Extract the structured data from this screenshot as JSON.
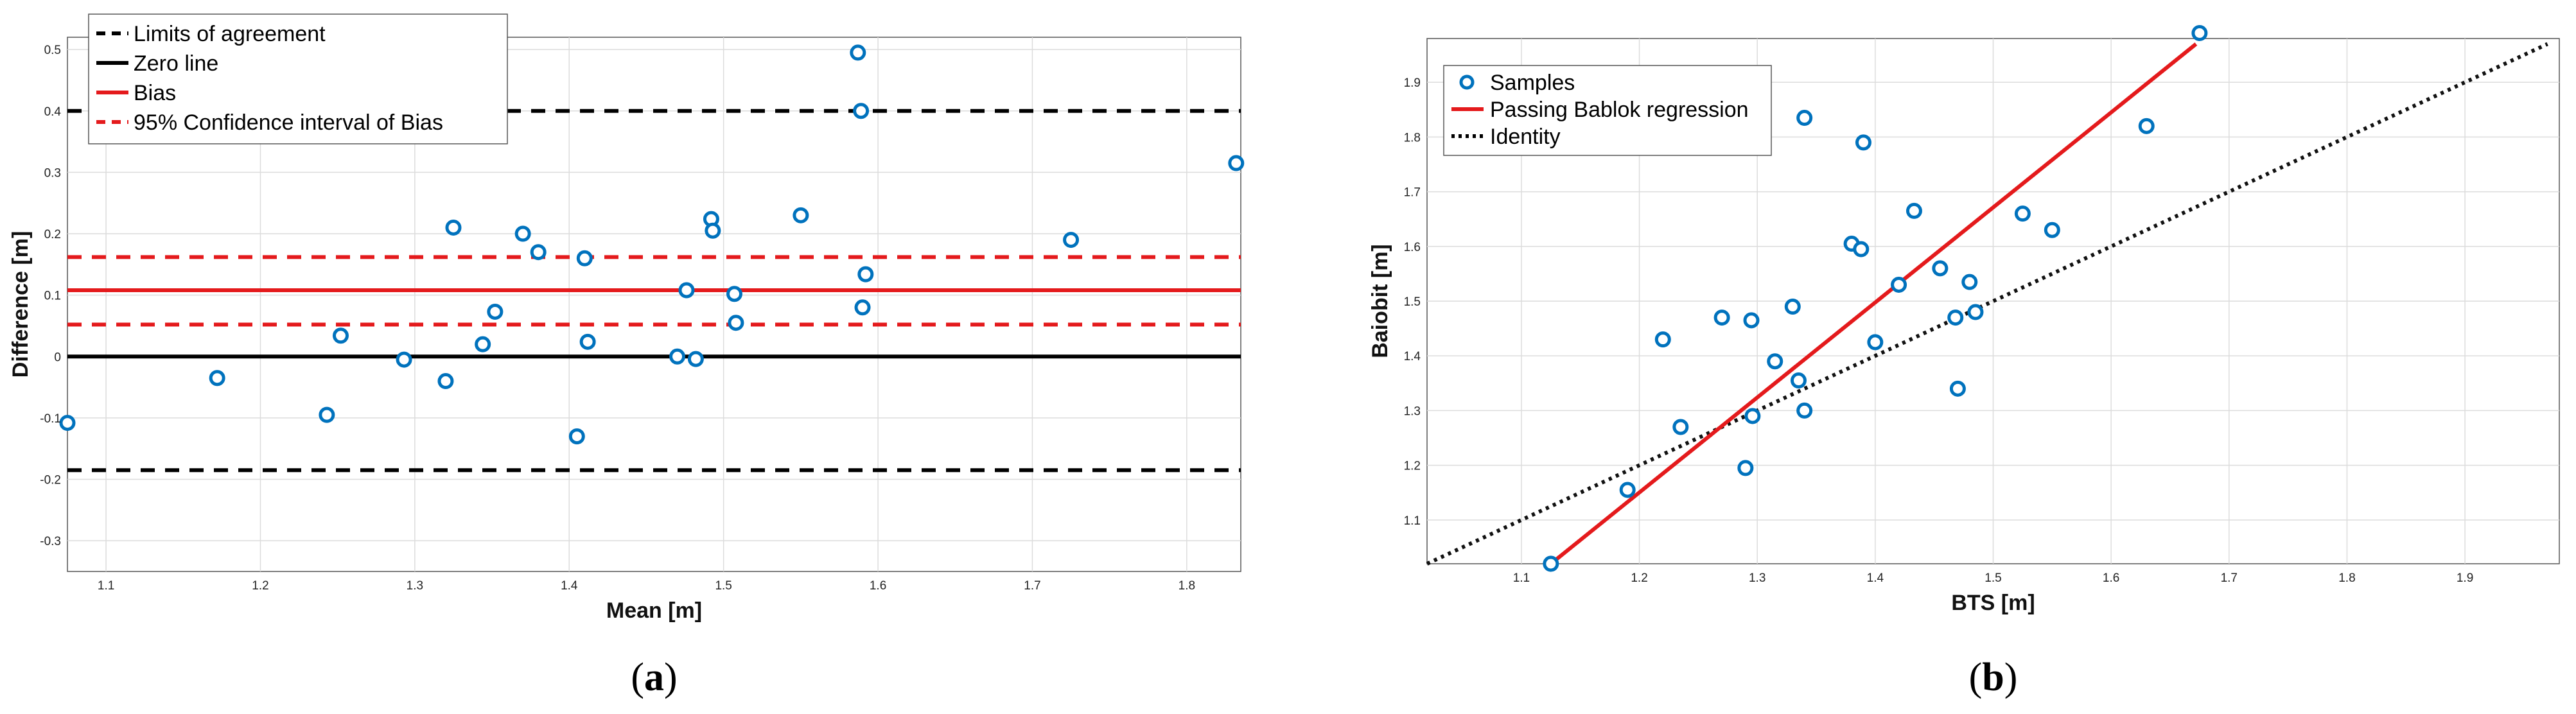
{
  "chart_data": [
    {
      "type": "scatter",
      "caption": "a",
      "xlabel": "Mean [m]",
      "ylabel": "Difference [m]",
      "xlim": [
        1.075,
        1.835
      ],
      "ylim": [
        -0.35,
        0.52
      ],
      "grid": true,
      "xticks": [
        "1.1",
        "1.2",
        "1.3",
        "1.4",
        "1.5",
        "1.6",
        "1.7",
        "1.8"
      ],
      "xtick_values": [
        1.1,
        1.2,
        1.3,
        1.4,
        1.5,
        1.6,
        1.7,
        1.8
      ],
      "yticks": [
        "-0.3",
        "-0.2",
        "-0.1",
        "0",
        "0.1",
        "0.2",
        "0.3",
        "0.4",
        "0.5"
      ],
      "ytick_values": [
        -0.3,
        -0.2,
        -0.1,
        0,
        0.1,
        0.2,
        0.3,
        0.4,
        0.5
      ],
      "legend_position": "top-left",
      "legend": [
        {
          "label": "Limits of agreement",
          "style": "dashed",
          "color": "#000000"
        },
        {
          "label": "Zero line",
          "style": "solid",
          "color": "#000000"
        },
        {
          "label": "Bias",
          "style": "solid",
          "color": "#e41a1c"
        },
        {
          "label": "95% Confidence interval of Bias",
          "style": "dashed",
          "color": "#e41a1c"
        }
      ],
      "lines": {
        "limits_of_agreement": [
          0.4,
          -0.185
        ],
        "zero": 0,
        "bias": 0.108,
        "bias_ci": [
          0.162,
          0.052
        ]
      },
      "marker_color": "#0072bd",
      "points": [
        [
          1.075,
          -0.108
        ],
        [
          1.172,
          -0.035
        ],
        [
          1.243,
          -0.095
        ],
        [
          1.252,
          0.034
        ],
        [
          1.293,
          -0.005
        ],
        [
          1.32,
          -0.04
        ],
        [
          1.325,
          0.21
        ],
        [
          1.344,
          0.02
        ],
        [
          1.352,
          0.073
        ],
        [
          1.37,
          0.2
        ],
        [
          1.38,
          0.17
        ],
        [
          1.405,
          -0.13
        ],
        [
          1.41,
          0.16
        ],
        [
          1.412,
          0.024
        ],
        [
          1.47,
          0.0
        ],
        [
          1.476,
          0.108
        ],
        [
          1.482,
          -0.004
        ],
        [
          1.492,
          0.224
        ],
        [
          1.493,
          0.205
        ],
        [
          1.507,
          0.102
        ],
        [
          1.508,
          0.055
        ],
        [
          1.55,
          0.23
        ],
        [
          1.587,
          0.495
        ],
        [
          1.589,
          0.4
        ],
        [
          1.59,
          0.08
        ],
        [
          1.592,
          0.134
        ],
        [
          1.725,
          0.19
        ],
        [
          1.832,
          0.315
        ]
      ]
    },
    {
      "type": "scatter",
      "caption": "b",
      "xlabel": "BTS [m]",
      "ylabel": "Baiobit [m]",
      "xlim": [
        1.02,
        1.98
      ],
      "ylim": [
        1.02,
        1.98
      ],
      "grid": true,
      "xticks": [
        "1.1",
        "1.2",
        "1.3",
        "1.4",
        "1.5",
        "1.6",
        "1.7",
        "1.8",
        "1.9"
      ],
      "xtick_values": [
        1.1,
        1.2,
        1.3,
        1.4,
        1.5,
        1.6,
        1.7,
        1.8,
        1.9
      ],
      "yticks": [
        "1.1",
        "1.2",
        "1.3",
        "1.4",
        "1.5",
        "1.6",
        "1.7",
        "1.8",
        "1.9"
      ],
      "ytick_values": [
        1.1,
        1.2,
        1.3,
        1.4,
        1.5,
        1.6,
        1.7,
        1.8,
        1.9
      ],
      "legend_position": "top-left",
      "legend": [
        {
          "label": "Samples",
          "style": "marker",
          "color": "#0072bd"
        },
        {
          "label": "Passing Bablok regression",
          "style": "solid",
          "color": "#e41a1c"
        },
        {
          "label": "Identity",
          "style": "dotted",
          "color": "#000000"
        }
      ],
      "regression_line": [
        [
          1.125,
          1.02
        ],
        [
          1.672,
          1.97
        ]
      ],
      "identity_line": [
        [
          1.02,
          1.02
        ],
        [
          1.97,
          1.97
        ]
      ],
      "marker_color": "#0072bd",
      "points": [
        [
          1.125,
          1.02
        ],
        [
          1.19,
          1.155
        ],
        [
          1.22,
          1.43
        ],
        [
          1.235,
          1.27
        ],
        [
          1.27,
          1.47
        ],
        [
          1.29,
          1.195
        ],
        [
          1.295,
          1.465
        ],
        [
          1.296,
          1.29
        ],
        [
          1.315,
          1.39
        ],
        [
          1.33,
          1.49
        ],
        [
          1.335,
          1.355
        ],
        [
          1.34,
          1.3
        ],
        [
          1.34,
          1.835
        ],
        [
          1.38,
          1.605
        ],
        [
          1.388,
          1.595
        ],
        [
          1.39,
          1.79
        ],
        [
          1.4,
          1.425
        ],
        [
          1.42,
          1.53
        ],
        [
          1.433,
          1.665
        ],
        [
          1.455,
          1.56
        ],
        [
          1.468,
          1.47
        ],
        [
          1.47,
          1.34
        ],
        [
          1.48,
          1.535
        ],
        [
          1.485,
          1.48
        ],
        [
          1.525,
          1.66
        ],
        [
          1.55,
          1.63
        ],
        [
          1.63,
          1.82
        ],
        [
          1.675,
          1.99
        ]
      ]
    }
  ]
}
